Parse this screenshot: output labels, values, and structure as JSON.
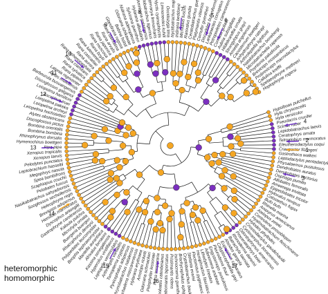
{
  "colors": {
    "heteromorphic": "#7b2fbf",
    "homomorphic": "#f5a623",
    "branch": "#111111",
    "arrow_purple": "#6a2fc2",
    "arrow_orange": "#f5a623"
  },
  "legend": {
    "items": [
      {
        "label": "heteromorphic",
        "color": "#7b2fbf"
      },
      {
        "label": "homomorphic",
        "color": "#f5a623"
      }
    ]
  },
  "taxa": [
    "Hypsiboas pulchellus",
    "Hyla chrysoscelis",
    "Hyla versicolor",
    "Pseudacris crucifer",
    "Scinax ruber",
    "Lepidobatrachus laevis",
    "Ceratophrys ornata",
    "Telmatobius marmoratus",
    "Eleutherodactylus coqui",
    "Craugastor fitzingeri",
    "Gastrotheca walkeri",
    "Leptodactylus pentadactylus",
    "Physalaemus pustulosus",
    "Dendrobates auratus",
    "Dendrobates tinctorius",
    "Oophaga pumilio",
    "Allobates femoralis",
    "Ameerega trivittata",
    "Epipedobates tricolor",
    "Hyloxalus nexipus",
    "Colostethus fugax",
    "Bufo bufo",
    "Rhinella marina",
    "Anaxyrus americanus",
    "Atelopus zeteki",
    "Centrolene prosoblepon",
    "Hyalinobatrachium fleischmanni",
    "Hylodes phyllodes",
    "Crossodactylus gaudichaudii",
    "Cycloramphus boraceiensis",
    "Odontophrynus americanus",
    "Proceratophrys boiei",
    "Rhinoderma darwinii",
    "Batrachyla taeniata",
    "Alsodes gargola",
    "Eupsophus calcaratus",
    "Calyptocephalella gayi",
    "Pleurodema thaul",
    "Engystomops pustulosus",
    "Adenomera andreae",
    "Lithodytes lineatus",
    "Hemiphractus fasciatus",
    "Flectonotus pygmaeus",
    "Stefania evansi",
    "Cryptobatrachus boulengeri",
    "Brachycephalus ephippium",
    "Ischnocnema guentheri",
    "Pristimantis ridens",
    "Strabomantis biporcatus",
    "Lithobates catesbeianus",
    "Rana temporaria",
    "Pelophylax lessonae",
    "Odorrana schmackeri",
    "Amolops ricketti",
    "Hylarana erythraea",
    "Ptychadena mascareniensis",
    "Phrynobatrachus natalensis",
    "Pyxicephalus adspersus",
    "Tomopterna cryptotis",
    "Arthroleptis variabilis",
    "Leptopelis vermiculatus",
    "Hyperolius viridiflavus",
    "Kassina senegalensis",
    "Afrixalus fornasini",
    "Mantella aurantiaca",
    "Boophis tephraeomystax",
    "Polypedates leucomystax",
    "Rhacophorus dennysi",
    "Buergeria buergeri",
    "Microhyla ornata",
    "Kaloula pulchra",
    "Gastrophryne carolinensis",
    "Dyscophus antongilii",
    "Hemisus marmoratus",
    "Breviceps adspersus",
    "Heleophryne regis",
    "Sooglossus sechellensis",
    "Nasikabatrachus sahyadrensis",
    "Pelobates fuscus",
    "Scaphiopus couchii",
    "Spea bombifrons",
    "Megophrys nasuta",
    "Leptobrachium hasseltii",
    "Pelodytes punctatus",
    "Xenopus laevis",
    "Xenopus tropicalis",
    "Pipa pipa",
    "Hymenochirus boettgeri",
    "Rhinophrynus dorsalis",
    "Bombina bombina",
    "Bombina orientalis",
    "Discoglossus pictus",
    "Alytes obstetricans",
    "Leiopelma hochstetteri",
    "Leiopelma archeyi",
    "Leiopelma pakeka",
    "Ascaphus truei",
    "Leiopelma hamiltoni",
    "Discoglossus galganoi",
    "Barbourula busuangensis",
    "Alytes muletensis",
    "Latonia nigriventer",
    "Rana pipiens",
    "Rana sylvatica",
    "Rana clamitans",
    "Rana sphenocephala",
    "Rana aurora",
    "Rana cascadae",
    "Rana luteiventris",
    "Rana boylii",
    "Rana muscosa",
    "Rana japonica",
    "Rana arvalis",
    "Rana dalmatina",
    "Glandirana rugosa",
    "Babina holsti",
    "Odorrana ishikawae",
    "Nidirana adenopleura",
    "Sylvirana guentheri",
    "Hylarana albolabris",
    "Amnirana galamensis",
    "Hoplobatrachus tigerinus",
    "Fejervarya limnocharis",
    "Euphlyctis cyanophlyctis",
    "Limnonectes kuhlii",
    "Occidozyga lima",
    "Nyctibatrachus major",
    "Indirana beddomii",
    "Micrixalus fuscus",
    "Ranixalus gundia",
    "Ceratobatrachus guentheri",
    "Platymantis vitiensis",
    "Cornufer guentheri",
    "Discodeles bufoniformis",
    "Lankanectes corrugatus",
    "Petropedetes cameronensis",
    "Conraua goliath",
    "Aubria subsigillata",
    "Hildebrandtia ornata",
    "Strongylopus grayii",
    "Amietia angolensis",
    "Cacosternum boettgeri",
    "Anhydrophryne rattrayi",
    "Arthroleptella lightfooti",
    "Natalobatrachus bonebergi",
    "Microbatrachella capensis",
    "Poyntonia paludicola",
    "Breviceps mossambicus",
    "Probreviceps macrodactylus",
    "Callulina kreffti",
    "Spelaeophryne methneri",
    "Hoplophryne rogersi"
  ],
  "callouts": [
    {
      "label": "1",
      "color": "#f5a623"
    },
    {
      "label": "2",
      "color": "#6a2fc2"
    },
    {
      "label": "3",
      "color": "#6a2fc2"
    },
    {
      "label": "4",
      "color": "#6a2fc2"
    },
    {
      "label": "5",
      "color": "#6a2fc2"
    },
    {
      "label": "6",
      "color": "#6a2fc2"
    },
    {
      "label": "7",
      "color": "#6a2fc2"
    },
    {
      "label": "8",
      "color": "#6a2fc2"
    },
    {
      "label": "9",
      "color": "#6a2fc2"
    },
    {
      "label": "10",
      "color": "#6a2fc2"
    },
    {
      "label": "11",
      "color": "#6a2fc2"
    },
    {
      "label": "12",
      "color": "#6a2fc2"
    },
    {
      "label": "13",
      "color": "#6a2fc2"
    },
    {
      "label": "14",
      "color": "#f5a623"
    },
    {
      "label": "15",
      "color": "#6a2fc2"
    },
    {
      "label": "16",
      "color": "#6a2fc2"
    },
    {
      "label": "17",
      "color": "#6a2fc2"
    }
  ]
}
